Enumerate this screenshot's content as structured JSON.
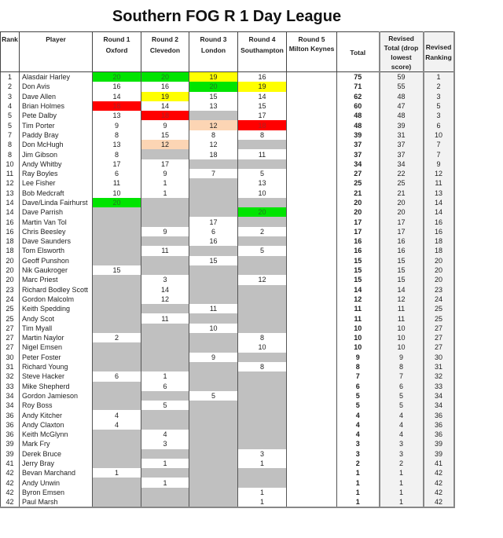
{
  "title": "Southern FOG R 1 Day League",
  "colors": {
    "green": "#00e400",
    "yellow": "#ffff00",
    "red": "#ff0000",
    "peach": "#fcd5b4",
    "no_score": "#c0c0c0"
  },
  "headers": {
    "rank": "Rank",
    "player": "Player",
    "rounds": [
      {
        "round": "Round 1",
        "venue": "Oxford"
      },
      {
        "round": "Round 2",
        "venue": "Clevedon"
      },
      {
        "round": "Round 3",
        "venue": "London"
      },
      {
        "round": "Round 4",
        "venue": "Southampton"
      },
      {
        "round": "Round 5",
        "venue": "Milton Keynes"
      }
    ],
    "total": "Total",
    "revised_total": "Revised Total (drop lowest score)",
    "revised_ranking": "Revised Ranking"
  },
  "rows": [
    {
      "rank": "1",
      "player": "Alasdair Harley",
      "rounds": [
        "20",
        "20",
        "19",
        "16",
        ""
      ],
      "hl": [
        "green",
        "green",
        "yellow",
        "",
        ""
      ],
      "total": "75",
      "revised_total": "59",
      "revised_ranking": "1"
    },
    {
      "rank": "2",
      "player": "Don Avis",
      "rounds": [
        "16",
        "16",
        "20",
        "19",
        ""
      ],
      "hl": [
        "",
        "",
        "green",
        "yellow",
        ""
      ],
      "total": "71",
      "revised_total": "55",
      "revised_ranking": "2"
    },
    {
      "rank": "3",
      "player": "Dave Allen",
      "rounds": [
        "14",
        "19",
        "15",
        "14",
        ""
      ],
      "hl": [
        "",
        "yellow",
        "",
        "",
        ""
      ],
      "total": "62",
      "revised_total": "48",
      "revised_ranking": "3"
    },
    {
      "rank": "4",
      "player": "Brian Holmes",
      "rounds": [
        "18",
        "14",
        "13",
        "15",
        ""
      ],
      "hl": [
        "red",
        "",
        "",
        "",
        ""
      ],
      "total": "60",
      "revised_total": "47",
      "revised_ranking": "5"
    },
    {
      "rank": "5",
      "player": "Pete Dalby",
      "rounds": [
        "13",
        "18",
        "",
        "17",
        ""
      ],
      "hl": [
        "",
        "red",
        "",
        "",
        ""
      ],
      "total": "48",
      "revised_total": "48",
      "revised_ranking": "3"
    },
    {
      "rank": "5",
      "player": "Tim Porter",
      "rounds": [
        "9",
        "9",
        "12",
        "18",
        ""
      ],
      "hl": [
        "",
        "",
        "peach",
        "red",
        ""
      ],
      "total": "48",
      "revised_total": "39",
      "revised_ranking": "6"
    },
    {
      "rank": "7",
      "player": "Paddy Bray",
      "rounds": [
        "8",
        "15",
        "8",
        "8",
        ""
      ],
      "total": "39",
      "revised_total": "31",
      "revised_ranking": "10"
    },
    {
      "rank": "8",
      "player": "Don McHugh",
      "rounds": [
        "13",
        "12",
        "12",
        "",
        ""
      ],
      "hl": [
        "",
        "peach",
        "",
        "",
        ""
      ],
      "total": "37",
      "revised_total": "37",
      "revised_ranking": "7"
    },
    {
      "rank": "8",
      "player": "Jim Gibson",
      "rounds": [
        "8",
        "",
        "18",
        "11",
        ""
      ],
      "total": "37",
      "revised_total": "37",
      "revised_ranking": "7"
    },
    {
      "rank": "10",
      "player": "Andy Whitby",
      "rounds": [
        "17",
        "17",
        "",
        "",
        ""
      ],
      "total": "34",
      "revised_total": "34",
      "revised_ranking": "9"
    },
    {
      "rank": "11",
      "player": "Ray Boyles",
      "rounds": [
        "6",
        "9",
        "7",
        "5",
        ""
      ],
      "total": "27",
      "revised_total": "22",
      "revised_ranking": "12"
    },
    {
      "rank": "12",
      "player": "Lee Fisher",
      "rounds": [
        "11",
        "1",
        "",
        "13",
        ""
      ],
      "total": "25",
      "revised_total": "25",
      "revised_ranking": "11"
    },
    {
      "rank": "13",
      "player": "Bob Medcraft",
      "rounds": [
        "10",
        "1",
        "",
        "10",
        ""
      ],
      "total": "21",
      "revised_total": "21",
      "revised_ranking": "13"
    },
    {
      "rank": "14",
      "player": "Dave/Linda Fairhurst",
      "rounds": [
        "20",
        "",
        "",
        "",
        ""
      ],
      "hl": [
        "green",
        "",
        "",
        "",
        ""
      ],
      "total": "20",
      "revised_total": "20",
      "revised_ranking": "14"
    },
    {
      "rank": "14",
      "player": "Dave Parrish",
      "rounds": [
        "",
        "",
        "",
        "20",
        ""
      ],
      "hl": [
        "",
        "",
        "",
        "green",
        ""
      ],
      "total": "20",
      "revised_total": "20",
      "revised_ranking": "14"
    },
    {
      "rank": "16",
      "player": "Martin Van Tol",
      "rounds": [
        "",
        "",
        "17",
        "",
        ""
      ],
      "total": "17",
      "revised_total": "17",
      "revised_ranking": "16"
    },
    {
      "rank": "16",
      "player": "Chris Beesley",
      "rounds": [
        "",
        "9",
        "6",
        "2",
        ""
      ],
      "total": "17",
      "revised_total": "17",
      "revised_ranking": "16"
    },
    {
      "rank": "18",
      "player": "Dave Saunders",
      "rounds": [
        "",
        "",
        "16",
        "",
        ""
      ],
      "total": "16",
      "revised_total": "16",
      "revised_ranking": "18"
    },
    {
      "rank": "18",
      "player": "Tom Elsworth",
      "rounds": [
        "",
        "11",
        "",
        "5",
        ""
      ],
      "total": "16",
      "revised_total": "16",
      "revised_ranking": "18"
    },
    {
      "rank": "20",
      "player": "Geoff Punshon",
      "rounds": [
        "",
        "",
        "15",
        "",
        ""
      ],
      "total": "15",
      "revised_total": "15",
      "revised_ranking": "20"
    },
    {
      "rank": "20",
      "player": "Nik Gaukroger",
      "rounds": [
        "15",
        "",
        "",
        "",
        ""
      ],
      "total": "15",
      "revised_total": "15",
      "revised_ranking": "20"
    },
    {
      "rank": "20",
      "player": "Marc Priest",
      "rounds": [
        "",
        "3",
        "",
        "12",
        ""
      ],
      "total": "15",
      "revised_total": "15",
      "revised_ranking": "20"
    },
    {
      "rank": "23",
      "player": "Richard Bodley Scott",
      "rounds": [
        "",
        "14",
        "",
        "",
        ""
      ],
      "total": "14",
      "revised_total": "14",
      "revised_ranking": "23"
    },
    {
      "rank": "24",
      "player": "Gordon Malcolm",
      "rounds": [
        "",
        "12",
        "",
        "",
        ""
      ],
      "total": "12",
      "revised_total": "12",
      "revised_ranking": "24"
    },
    {
      "rank": "25",
      "player": "Keith Spedding",
      "rounds": [
        "",
        "",
        "11",
        "",
        ""
      ],
      "total": "11",
      "revised_total": "11",
      "revised_ranking": "25"
    },
    {
      "rank": "25",
      "player": "Andy Scot",
      "rounds": [
        "",
        "11",
        "",
        "",
        ""
      ],
      "total": "11",
      "revised_total": "11",
      "revised_ranking": "25"
    },
    {
      "rank": "27",
      "player": "Tim Myall",
      "rounds": [
        "",
        "",
        "10",
        "",
        ""
      ],
      "total": "10",
      "revised_total": "10",
      "revised_ranking": "27"
    },
    {
      "rank": "27",
      "player": "Martin Naylor",
      "rounds": [
        "2",
        "",
        "",
        "8",
        ""
      ],
      "total": "10",
      "revised_total": "10",
      "revised_ranking": "27"
    },
    {
      "rank": "27",
      "player": "Nigel Emsen",
      "rounds": [
        "",
        "",
        "",
        "10",
        ""
      ],
      "total": "10",
      "revised_total": "10",
      "revised_ranking": "27"
    },
    {
      "rank": "30",
      "player": "Peter Foster",
      "rounds": [
        "",
        "",
        "9",
        "",
        ""
      ],
      "total": "9",
      "revised_total": "9",
      "revised_ranking": "30"
    },
    {
      "rank": "31",
      "player": "Richard Young",
      "rounds": [
        "",
        "",
        "",
        "8",
        ""
      ],
      "total": "8",
      "revised_total": "8",
      "revised_ranking": "31"
    },
    {
      "rank": "32",
      "player": "Steve Hacker",
      "rounds": [
        "6",
        "1",
        "",
        "",
        ""
      ],
      "total": "7",
      "revised_total": "7",
      "revised_ranking": "32"
    },
    {
      "rank": "33",
      "player": "Mike Shepherd",
      "rounds": [
        "",
        "6",
        "",
        "",
        ""
      ],
      "total": "6",
      "revised_total": "6",
      "revised_ranking": "33"
    },
    {
      "rank": "34",
      "player": "Gordon Jamieson",
      "rounds": [
        "",
        "",
        "5",
        "",
        ""
      ],
      "total": "5",
      "revised_total": "5",
      "revised_ranking": "34"
    },
    {
      "rank": "34",
      "player": "Roy Boss",
      "rounds": [
        "",
        "5",
        "",
        "",
        ""
      ],
      "total": "5",
      "revised_total": "5",
      "revised_ranking": "34"
    },
    {
      "rank": "36",
      "player": "Andy Kitcher",
      "rounds": [
        "4",
        "",
        "",
        "",
        ""
      ],
      "total": "4",
      "revised_total": "4",
      "revised_ranking": "36"
    },
    {
      "rank": "36",
      "player": "Andy Claxton",
      "rounds": [
        "4",
        "",
        "",
        "",
        ""
      ],
      "total": "4",
      "revised_total": "4",
      "revised_ranking": "36"
    },
    {
      "rank": "36",
      "player": "Keith McGlynn",
      "rounds": [
        "",
        "4",
        "",
        "",
        ""
      ],
      "total": "4",
      "revised_total": "4",
      "revised_ranking": "36"
    },
    {
      "rank": "39",
      "player": "Mark Fry",
      "rounds": [
        "",
        "3",
        "",
        "",
        ""
      ],
      "total": "3",
      "revised_total": "3",
      "revised_ranking": "39"
    },
    {
      "rank": "39",
      "player": "Derek Bruce",
      "rounds": [
        "",
        "",
        "",
        "3",
        ""
      ],
      "total": "3",
      "revised_total": "3",
      "revised_ranking": "39"
    },
    {
      "rank": "41",
      "player": "Jerry Bray",
      "rounds": [
        "",
        "1",
        "",
        "1",
        ""
      ],
      "total": "2",
      "revised_total": "2",
      "revised_ranking": "41"
    },
    {
      "rank": "42",
      "player": "Bevan Marchand",
      "rounds": [
        "1",
        "",
        "",
        "",
        ""
      ],
      "total": "1",
      "revised_total": "1",
      "revised_ranking": "42"
    },
    {
      "rank": "42",
      "player": "Andy Unwin",
      "rounds": [
        "",
        "1",
        "",
        "",
        ""
      ],
      "total": "1",
      "revised_total": "1",
      "revised_ranking": "42"
    },
    {
      "rank": "42",
      "player": "Byron Emsen",
      "rounds": [
        "",
        "",
        "",
        "1",
        ""
      ],
      "total": "1",
      "revised_total": "1",
      "revised_ranking": "42"
    },
    {
      "rank": "42",
      "player": "Paul Marsh",
      "rounds": [
        "",
        "",
        "",
        "1",
        ""
      ],
      "total": "1",
      "revised_total": "1",
      "revised_ranking": "42"
    }
  ]
}
